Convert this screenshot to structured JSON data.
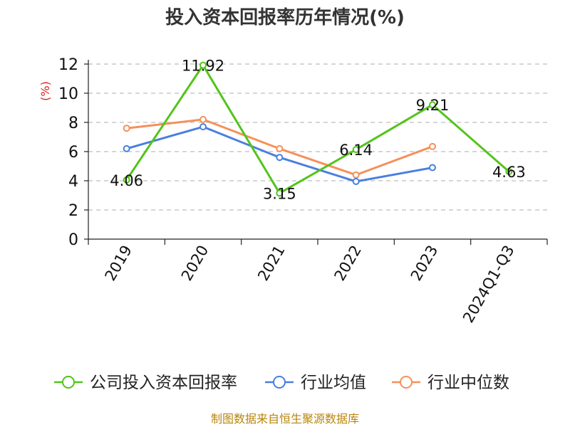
{
  "chart_data": {
    "type": "line",
    "title": "投入资本回报率历年情况(%)",
    "ylabel": "(%)",
    "xlabel": "",
    "categories": [
      "2019",
      "2020",
      "2021",
      "2022",
      "2023",
      "2024Q1-Q3"
    ],
    "ylim": [
      0,
      12
    ],
    "yticks": [
      0,
      2,
      4,
      6,
      8,
      10,
      12
    ],
    "grid": true,
    "legend_position": "bottom",
    "series": [
      {
        "name": "公司投入资本回报率",
        "color": "#52c41a",
        "values": [
          4.06,
          11.92,
          3.15,
          6.14,
          9.21,
          4.63
        ],
        "labels": [
          "4.06",
          "11.92",
          "3.15",
          "6.14",
          "9.21",
          "4.63"
        ]
      },
      {
        "name": "行业均值",
        "color": "#4a7fe0",
        "values": [
          6.2,
          7.7,
          5.6,
          3.95,
          4.9,
          null
        ]
      },
      {
        "name": "行业中位数",
        "color": "#f5905a",
        "values": [
          7.6,
          8.2,
          6.2,
          4.4,
          6.35,
          null
        ]
      }
    ],
    "source": "制图数据来自恒生聚源数据库"
  }
}
